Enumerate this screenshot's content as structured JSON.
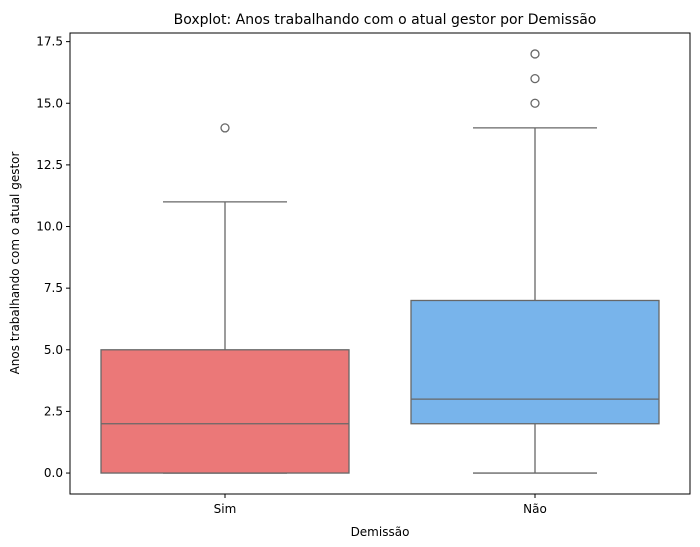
{
  "chart_data": {
    "type": "boxplot",
    "title": "Boxplot: Anos trabalhando com o atual gestor por Demissão",
    "xlabel": "Demissão",
    "ylabel": "Anos trabalhando com o atual gestor",
    "ylim": [
      -0.85,
      17.85
    ],
    "yticks": [
      "0.0",
      "2.5",
      "5.0",
      "7.5",
      "10.0",
      "12.5",
      "15.0",
      "17.5"
    ],
    "categories": [
      "Sim",
      "Não"
    ],
    "series": [
      {
        "category": "Sim",
        "color": "#EB7878",
        "min": 0,
        "q1": 0,
        "median": 2,
        "q3": 5,
        "max": 11,
        "outliers": [
          14
        ]
      },
      {
        "category": "Não",
        "color": "#78B4EB",
        "min": 0,
        "q1": 2,
        "median": 3,
        "q3": 7,
        "max": 14,
        "outliers": [
          15,
          16,
          17
        ]
      }
    ],
    "grid": false,
    "line_color": "#676767"
  }
}
